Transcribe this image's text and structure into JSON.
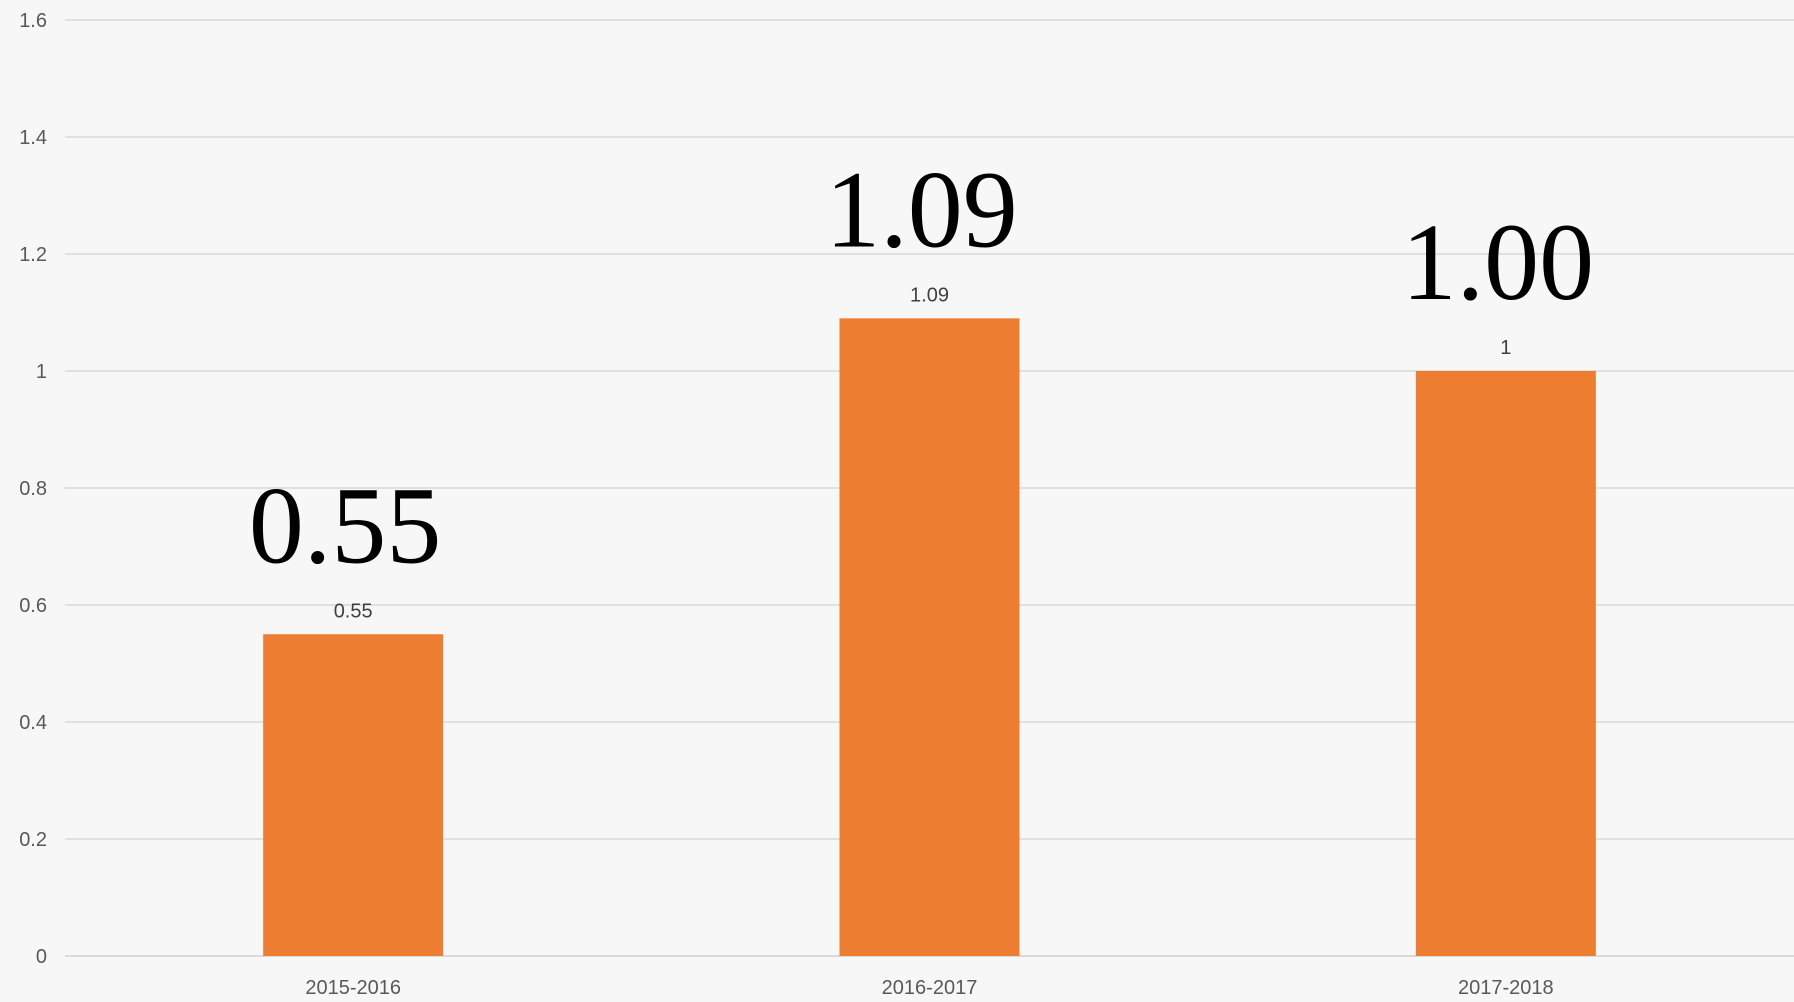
{
  "chart_data": {
    "type": "bar",
    "categories": [
      "2015-2016",
      "2016-2017",
      "2017-2018"
    ],
    "values": [
      0.55,
      1.09,
      1
    ],
    "data_labels": [
      "0.55",
      "1.09",
      "1"
    ],
    "annotations": [
      "0.55",
      "1.09",
      "1.00"
    ],
    "ylim": [
      0,
      1.6
    ],
    "yticks": [
      "0",
      "0.2",
      "0.4",
      "0.6",
      "0.8",
      "1",
      "1.2",
      "1.4",
      "1.6"
    ],
    "title": "",
    "xlabel": "",
    "ylabel": "",
    "grid": true,
    "legend": "none",
    "colors": {
      "bar": "#ed7d31",
      "grid": "#d9d9d9",
      "background": "#f7f7f7"
    }
  }
}
